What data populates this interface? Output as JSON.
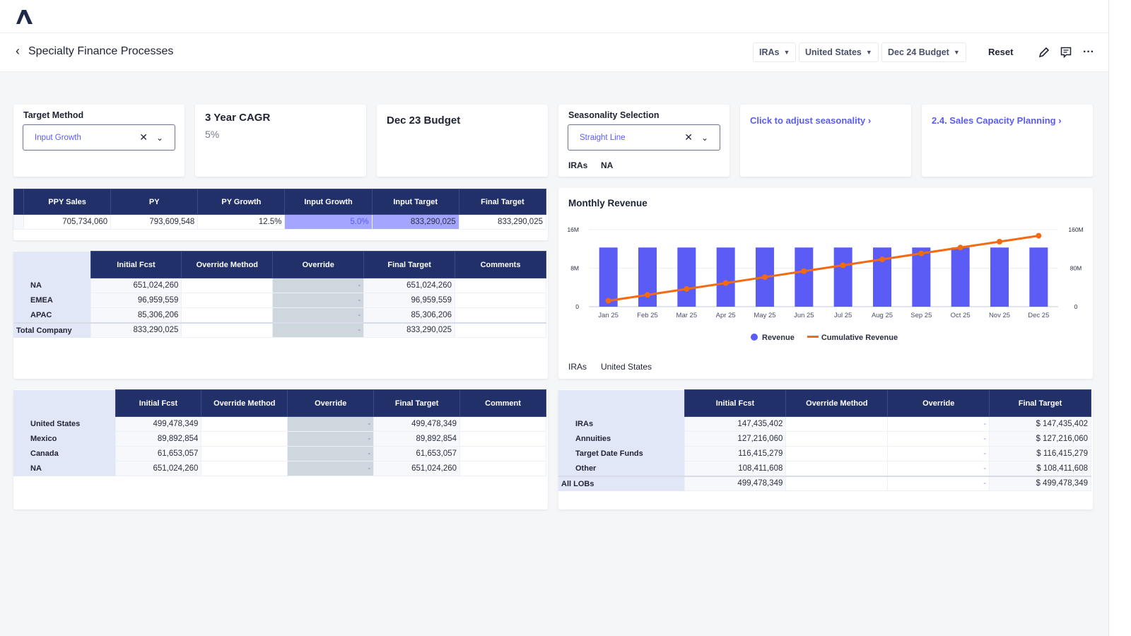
{
  "header": {
    "title": "Specialty Finance Processes",
    "filters": [
      "IRAs",
      "United States",
      "Dec 24 Budget"
    ],
    "reset_label": "Reset"
  },
  "cards": {
    "target_method": {
      "label": "Target Method",
      "value": "Input Growth"
    },
    "cagr": {
      "title": "3 Year CAGR",
      "value": "5%"
    },
    "budget": {
      "title": "Dec 23 Budget"
    },
    "seasonality": {
      "label": "Seasonality Selection",
      "value": "Straight Line",
      "tags": [
        "IRAs",
        "NA"
      ]
    },
    "adjust_link": "Click to adjust seasonality",
    "capacity_link": "2.4. Sales Capacity Planning"
  },
  "summary_table": {
    "headers": [
      "PPY Sales",
      "PY",
      "PY Growth",
      "Input Growth",
      "Input Target",
      "Final Target"
    ],
    "row": [
      "705,734,060",
      "793,609,548",
      "12.5%",
      "5.0%",
      "833,290,025",
      "833,290,025"
    ]
  },
  "region_table": {
    "headers": [
      "Initial Fcst",
      "Override Method",
      "Override",
      "Final Target",
      "Comments"
    ],
    "rows": [
      {
        "label": "NA",
        "cells": [
          "651,024,260",
          "",
          "-",
          "651,024,260",
          ""
        ]
      },
      {
        "label": "EMEA",
        "cells": [
          "96,959,559",
          "",
          "-",
          "96,959,559",
          ""
        ]
      },
      {
        "label": "APAC",
        "cells": [
          "85,306,206",
          "",
          "-",
          "85,306,206",
          ""
        ]
      },
      {
        "label": "Total Company",
        "cells": [
          "833,290,025",
          "",
          "-",
          "833,290,025",
          ""
        ],
        "total": true
      }
    ]
  },
  "country_table": {
    "headers": [
      "Initial Fcst",
      "Override Method",
      "Override",
      "Final Target",
      "Comment"
    ],
    "rows": [
      {
        "label": "United States",
        "cells": [
          "499,478,349",
          "",
          "-",
          "499,478,349",
          ""
        ]
      },
      {
        "label": "Mexico",
        "cells": [
          "89,892,854",
          "",
          "-",
          "89,892,854",
          ""
        ]
      },
      {
        "label": "Canada",
        "cells": [
          "61,653,057",
          "",
          "-",
          "61,653,057",
          ""
        ]
      },
      {
        "label": "NA",
        "cells": [
          "651,024,260",
          "",
          "-",
          "651,024,260",
          ""
        ]
      }
    ]
  },
  "lob_table": {
    "headers": [
      "Initial Fcst",
      "Override Method",
      "Override",
      "Final Target"
    ],
    "rows": [
      {
        "label": "IRAs",
        "cells": [
          "147,435,402",
          "",
          "-",
          "$ 147,435,402"
        ]
      },
      {
        "label": "Annuities",
        "cells": [
          "127,216,060",
          "",
          "-",
          "$ 127,216,060"
        ]
      },
      {
        "label": "Target Date Funds",
        "cells": [
          "116,415,279",
          "",
          "-",
          "$ 116,415,279"
        ]
      },
      {
        "label": "Other",
        "cells": [
          "108,411,608",
          "",
          "-",
          "$ 108,411,608"
        ]
      },
      {
        "label": "All LOBs",
        "cells": [
          "499,478,349",
          "",
          "-",
          "$ 499,478,349"
        ],
        "total": true
      }
    ]
  },
  "chart_tags": [
    "IRAs",
    "United States"
  ],
  "chart_data": {
    "type": "bar",
    "title": "Monthly Revenue",
    "categories": [
      "Jan 25",
      "Feb 25",
      "Mar 25",
      "Apr 25",
      "May 25",
      "Jun 25",
      "Jul 25",
      "Aug 25",
      "Sep 25",
      "Oct 25",
      "Nov 25",
      "Dec 25"
    ],
    "series": [
      {
        "name": "Revenue",
        "type": "bar",
        "axis": "left",
        "color": "#5a5cf5",
        "values": [
          12.29,
          12.29,
          12.29,
          12.29,
          12.29,
          12.29,
          12.29,
          12.29,
          12.29,
          12.29,
          12.29,
          12.29
        ]
      },
      {
        "name": "Cumulative Revenue",
        "type": "line",
        "axis": "right",
        "color": "#f36a12",
        "values": [
          12.3,
          24.6,
          36.9,
          49.1,
          61.4,
          73.7,
          86.0,
          98.3,
          110.6,
          122.9,
          135.1,
          147.4
        ]
      }
    ],
    "units": "M",
    "y_left": {
      "range": [
        0,
        16
      ],
      "ticks": [
        "0",
        "8M",
        "16M"
      ]
    },
    "y_right": {
      "range": [
        0,
        160
      ],
      "ticks": [
        "0",
        "80M",
        "160M"
      ]
    },
    "grid": true,
    "legend": "bottom"
  }
}
